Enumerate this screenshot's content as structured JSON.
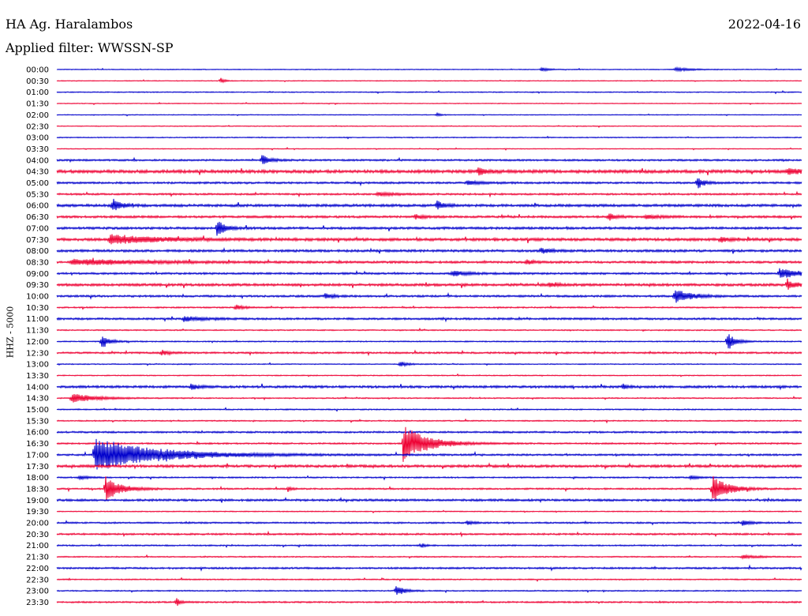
{
  "header": {
    "station": "HA Ag. Haralambos",
    "date": "2022-04-16",
    "filter": "Applied filter: WWSSN-SP"
  },
  "chart_data": {
    "type": "line",
    "title": "HA Ag. Haralambos",
    "ylabel": "HHZ - 5000",
    "colors": [
      "#0000cc",
      "#ee0033"
    ],
    "rows": [
      "00:00",
      "00:30",
      "01:00",
      "01:30",
      "02:00",
      "02:30",
      "03:00",
      "03:30",
      "04:00",
      "04:30",
      "05:00",
      "05:30",
      "06:00",
      "06:30",
      "07:00",
      "07:30",
      "08:00",
      "08:30",
      "09:00",
      "09:30",
      "10:00",
      "10:30",
      "11:00",
      "11:30",
      "12:00",
      "12:30",
      "13:00",
      "13:30",
      "14:00",
      "14:30",
      "15:00",
      "15:30",
      "16:00",
      "16:30",
      "17:00",
      "17:30",
      "18:00",
      "18:30",
      "19:00",
      "19:30",
      "20:00",
      "20:30",
      "21:00",
      "21:30",
      "22:00",
      "22:30",
      "23:00",
      "23:30"
    ],
    "noise": [
      0.4,
      0.4,
      0.5,
      0.4,
      0.4,
      0.4,
      0.5,
      0.4,
      0.9,
      1.6,
      1.0,
      0.9,
      1.3,
      1.1,
      1.2,
      1.4,
      1.2,
      1.1,
      1.0,
      1.3,
      1.0,
      0.7,
      1.0,
      0.6,
      0.6,
      0.9,
      0.5,
      0.5,
      1.2,
      0.6,
      0.6,
      0.6,
      0.9,
      0.8,
      0.9,
      1.3,
      0.7,
      0.8,
      1.1,
      0.5,
      0.8,
      0.9,
      0.7,
      0.6,
      0.9,
      0.6,
      0.6,
      0.8
    ],
    "events": [
      {
        "row": 0,
        "t": 0.65,
        "amp": 2,
        "dur": 0.01
      },
      {
        "row": 0,
        "t": 0.83,
        "amp": 2,
        "dur": 0.02
      },
      {
        "row": 1,
        "t": 0.22,
        "amp": 3,
        "dur": 0.005
      },
      {
        "row": 4,
        "t": 0.51,
        "amp": 2,
        "dur": 0.005
      },
      {
        "row": 8,
        "t": 0.275,
        "amp": 6,
        "dur": 0.01
      },
      {
        "row": 9,
        "t": 0.565,
        "amp": 5,
        "dur": 0.01
      },
      {
        "row": 9,
        "t": 0.98,
        "amp": 3,
        "dur": 0.03
      },
      {
        "row": 10,
        "t": 0.86,
        "amp": 7,
        "dur": 0.008
      },
      {
        "row": 10,
        "t": 0.55,
        "amp": 2,
        "dur": 0.02
      },
      {
        "row": 11,
        "t": 0.43,
        "amp": 2,
        "dur": 0.02
      },
      {
        "row": 12,
        "t": 0.075,
        "amp": 7,
        "dur": 0.01
      },
      {
        "row": 12,
        "t": 0.51,
        "amp": 5,
        "dur": 0.01
      },
      {
        "row": 13,
        "t": 0.48,
        "amp": 3,
        "dur": 0.01
      },
      {
        "row": 13,
        "t": 0.74,
        "amp": 4,
        "dur": 0.01
      },
      {
        "row": 13,
        "t": 0.79,
        "amp": 2,
        "dur": 0.02
      },
      {
        "row": 14,
        "t": 0.215,
        "amp": 9,
        "dur": 0.01
      },
      {
        "row": 15,
        "t": 0.07,
        "amp": 5,
        "dur": 0.06
      },
      {
        "row": 15,
        "t": 0.89,
        "amp": 3,
        "dur": 0.01
      },
      {
        "row": 16,
        "t": 0.65,
        "amp": 3,
        "dur": 0.01
      },
      {
        "row": 17,
        "t": 0.02,
        "amp": 3,
        "dur": 0.1
      },
      {
        "row": 17,
        "t": 0.63,
        "amp": 3,
        "dur": 0.01
      },
      {
        "row": 18,
        "t": 0.53,
        "amp": 3,
        "dur": 0.02
      },
      {
        "row": 18,
        "t": 0.97,
        "amp": 5,
        "dur": 0.03
      },
      {
        "row": 19,
        "t": 0.98,
        "amp": 6,
        "dur": 0.01
      },
      {
        "row": 19,
        "t": 0.66,
        "amp": 3,
        "dur": 0.01
      },
      {
        "row": 20,
        "t": 0.83,
        "amp": 8,
        "dur": 0.02
      },
      {
        "row": 20,
        "t": 0.36,
        "amp": 3,
        "dur": 0.01
      },
      {
        "row": 21,
        "t": 0.24,
        "amp": 3,
        "dur": 0.01
      },
      {
        "row": 22,
        "t": 0.17,
        "amp": 3,
        "dur": 0.02
      },
      {
        "row": 24,
        "t": 0.06,
        "amp": 7,
        "dur": 0.01
      },
      {
        "row": 24,
        "t": 0.9,
        "amp": 10,
        "dur": 0.01
      },
      {
        "row": 25,
        "t": 0.14,
        "amp": 3,
        "dur": 0.01
      },
      {
        "row": 26,
        "t": 0.46,
        "amp": 3,
        "dur": 0.01
      },
      {
        "row": 28,
        "t": 0.18,
        "amp": 3,
        "dur": 0.01
      },
      {
        "row": 28,
        "t": 0.76,
        "amp": 3,
        "dur": 0.005
      },
      {
        "row": 29,
        "t": 0.02,
        "amp": 5,
        "dur": 0.03
      },
      {
        "row": 33,
        "t": 0.465,
        "amp": 20,
        "dur": 0.03
      },
      {
        "row": 34,
        "t": 0.05,
        "amp": 18,
        "dur": 0.08
      },
      {
        "row": 36,
        "t": 0.03,
        "amp": 2,
        "dur": 0.01
      },
      {
        "row": 36,
        "t": 0.85,
        "amp": 2,
        "dur": 0.01
      },
      {
        "row": 37,
        "t": 0.065,
        "amp": 13,
        "dur": 0.02
      },
      {
        "row": 37,
        "t": 0.88,
        "amp": 14,
        "dur": 0.02
      },
      {
        "row": 37,
        "t": 0.31,
        "amp": 3,
        "dur": 0.005
      },
      {
        "row": 40,
        "t": 0.55,
        "amp": 2,
        "dur": 0.01
      },
      {
        "row": 40,
        "t": 0.92,
        "amp": 3,
        "dur": 0.01
      },
      {
        "row": 42,
        "t": 0.49,
        "amp": 2,
        "dur": 0.005
      },
      {
        "row": 43,
        "t": 0.92,
        "amp": 2,
        "dur": 0.02
      },
      {
        "row": 46,
        "t": 0.455,
        "amp": 6,
        "dur": 0.01
      },
      {
        "row": 47,
        "t": 0.16,
        "amp": 5,
        "dur": 0.005
      }
    ]
  }
}
